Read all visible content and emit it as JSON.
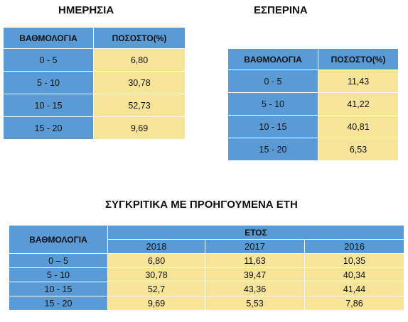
{
  "day": {
    "title": "ΗΜΕΡΗΣΙΑ",
    "col_grade": "ΒΑΘΜΟΛΟΓΙΑ",
    "col_pct": "ΠΟΣΟΣΤΟ(%)",
    "rows": [
      {
        "range": "0 - 5",
        "pct": "6,80"
      },
      {
        "range": "5 - 10",
        "pct": "30,78"
      },
      {
        "range": "10 - 15",
        "pct": "52,73"
      },
      {
        "range": "15 - 20",
        "pct": "9,69"
      }
    ]
  },
  "evening": {
    "title": "ΕΣΠΕΡΙΝΑ",
    "col_grade": "ΒΑΘΜΟΛΟΓΙΑ",
    "col_pct": "ΠΟΣΟΣΤΟ(%)",
    "rows": [
      {
        "range": "0 - 5",
        "pct": "11,43"
      },
      {
        "range": "5 - 10",
        "pct": "41,22"
      },
      {
        "range": "10 - 15",
        "pct": "40,81"
      },
      {
        "range": "15 - 20",
        "pct": "6,53"
      }
    ]
  },
  "compare": {
    "title": "ΣΥΓΚΡΙΤΙΚΑ ΜΕ ΠΡΟΗΓΟΥΜΕΝΑ ΕΤΗ",
    "col_grade": "ΒΑΘΜΟΛΟΓΙΑ",
    "col_year_group": "ΕΤΟΣ",
    "years": [
      "2018",
      "2017",
      "2016"
    ],
    "rows": [
      {
        "range": "0 – 5",
        "values": [
          "6,80",
          "11,63",
          "10,35"
        ]
      },
      {
        "range": "5 - 10",
        "values": [
          "30,78",
          "39,47",
          "40,34"
        ]
      },
      {
        "range": "10 - 15",
        "values": [
          "52,7",
          "43,36",
          "41,44"
        ]
      },
      {
        "range": "15 - 20",
        "values": [
          "9,69",
          "5,53",
          "7,86"
        ]
      }
    ]
  }
}
